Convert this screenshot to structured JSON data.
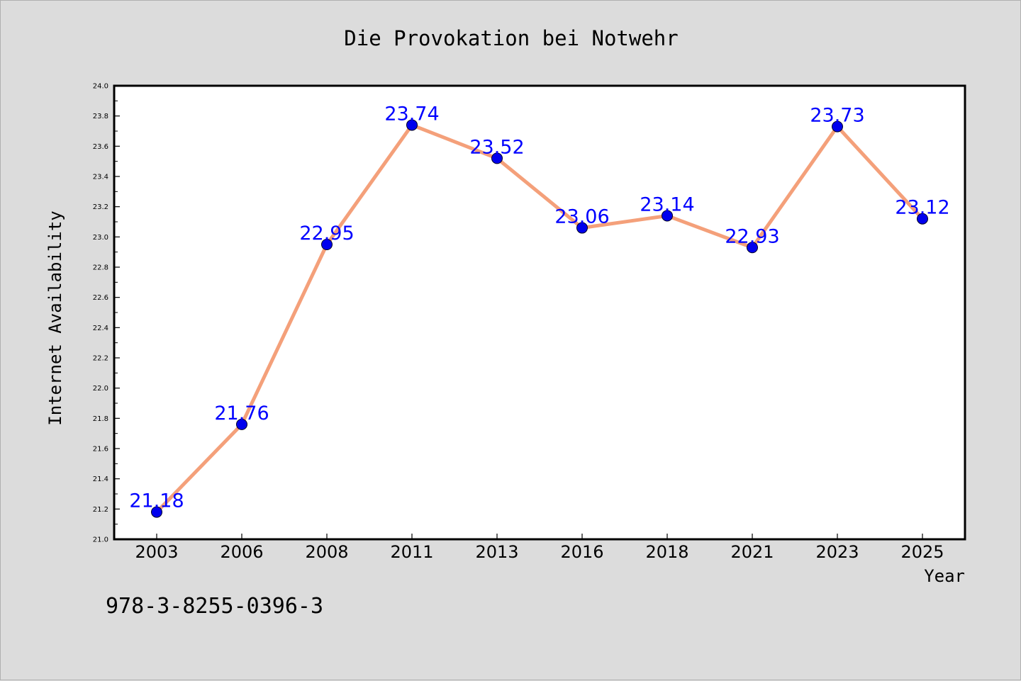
{
  "chart_data": {
    "type": "line",
    "title": "Die Provokation bei Notwehr",
    "xlabel": "Year",
    "ylabel": "Internet Availability",
    "categories": [
      "2003",
      "2006",
      "2008",
      "2011",
      "2013",
      "2016",
      "2018",
      "2021",
      "2023",
      "2025"
    ],
    "series": [
      {
        "values": [
          21.18,
          21.76,
          22.95,
          23.74,
          23.52,
          23.06,
          23.14,
          22.93,
          23.73,
          23.12
        ],
        "labels": [
          "21.18",
          "21.76",
          "22.95",
          "23.74",
          "23.52",
          "23.06",
          "23.14",
          "22.93",
          "23.73",
          "23.12"
        ]
      }
    ],
    "ylim": [
      21.0,
      24.0
    ],
    "yticks": [
      "21.0",
      "21.2",
      "21.4",
      "21.6",
      "21.8",
      "22.0",
      "22.2",
      "22.4",
      "22.6",
      "22.8",
      "23.0",
      "23.2",
      "23.4",
      "23.6",
      "23.8",
      "24.0"
    ],
    "grid": false,
    "legend": "none",
    "colors": {
      "line": "#f4a07a",
      "marker": "#0000ee",
      "data_label": "#0000ff",
      "background": "#dcdcdc",
      "plot_background": "#ffffff"
    }
  },
  "footnote": "978-3-8255-0396-3"
}
